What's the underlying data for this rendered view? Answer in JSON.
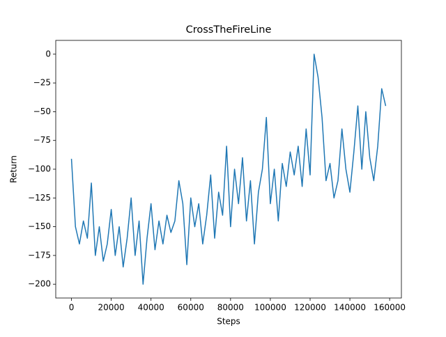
{
  "chart_data": {
    "type": "line",
    "title": "CrossTheFireLine",
    "x_label": "Steps",
    "y_label": "Return",
    "xlim": [
      -7900,
      165900
    ],
    "ylim": [
      -212,
      12
    ],
    "xticks": [
      0,
      20000,
      40000,
      60000,
      80000,
      100000,
      120000,
      140000,
      160000
    ],
    "yticks": [
      {
        "value": -200,
        "label": "−200"
      },
      {
        "value": -175,
        "label": "−175"
      },
      {
        "value": -150,
        "label": "−150"
      },
      {
        "value": -125,
        "label": "−125"
      },
      {
        "value": -100,
        "label": "−100"
      },
      {
        "value": -75,
        "label": "−75"
      },
      {
        "value": -50,
        "label": "−50"
      },
      {
        "value": -25,
        "label": "−25"
      },
      0
    ],
    "grid": false,
    "x": [
      0,
      2000,
      4000,
      6000,
      8000,
      10000,
      12000,
      14000,
      16000,
      18000,
      20000,
      22000,
      24000,
      26000,
      28000,
      30000,
      32000,
      34000,
      36000,
      38000,
      40000,
      42000,
      44000,
      46000,
      48000,
      50000,
      52000,
      54000,
      56000,
      58000,
      60000,
      62000,
      64000,
      66000,
      68000,
      70000,
      72000,
      74000,
      76000,
      78000,
      80000,
      82000,
      84000,
      86000,
      88000,
      90000,
      92000,
      94000,
      96000,
      98000,
      100000,
      102000,
      104000,
      106000,
      108000,
      110000,
      112000,
      114000,
      116000,
      118000,
      120000,
      122000,
      124000,
      126000,
      128000,
      130000,
      132000,
      134000,
      136000,
      138000,
      140000,
      142000,
      144000,
      146000,
      148000,
      150000,
      152000,
      154000,
      156000,
      158000
    ],
    "series": [
      {
        "name": "Return",
        "color": "#1f77b4",
        "values": [
          -91,
          -150,
          -165,
          -145,
          -160,
          -112,
          -175,
          -150,
          -180,
          -165,
          -135,
          -175,
          -150,
          -185,
          -160,
          -125,
          -175,
          -145,
          -200,
          -160,
          -130,
          -170,
          -145,
          -165,
          -140,
          -155,
          -145,
          -110,
          -130,
          -183,
          -125,
          -150,
          -130,
          -165,
          -140,
          -105,
          -160,
          -120,
          -140,
          -80,
          -150,
          -100,
          -130,
          -90,
          -145,
          -110,
          -165,
          -120,
          -100,
          -55,
          -130,
          -100,
          -145,
          -95,
          -115,
          -85,
          -105,
          -80,
          -115,
          -65,
          -105,
          0,
          -20,
          -55,
          -110,
          -95,
          -125,
          -110,
          -65,
          -100,
          -120,
          -85,
          -45,
          -100,
          -50,
          -90,
          -110,
          -80,
          -30,
          -45
        ]
      }
    ]
  }
}
